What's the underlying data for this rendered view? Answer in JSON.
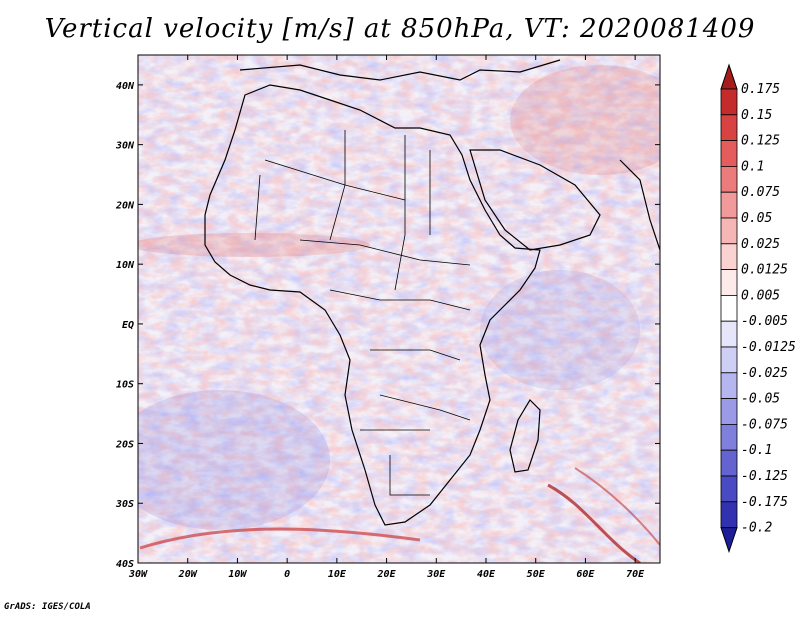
{
  "title": "Vertical velocity [m/s] at 850hPa, VT: 2020081409",
  "credit": "GrADS: IGES/COLA",
  "lon_labels": [
    "30W",
    "20W",
    "10W",
    "0",
    "10E",
    "20E",
    "30E",
    "40E",
    "50E",
    "60E",
    "70E"
  ],
  "lat_labels": [
    "40N",
    "30N",
    "20N",
    "10N",
    "EQ",
    "10S",
    "20S",
    "30S",
    "40S"
  ],
  "colorbar": {
    "labels": [
      "0.175",
      "0.15",
      "0.125",
      "0.1",
      "0.075",
      "0.05",
      "0.025",
      "0.0125",
      "0.005",
      "-0.005",
      "-0.0125",
      "-0.025",
      "-0.05",
      "-0.075",
      "-0.1",
      "-0.125",
      "-0.175",
      "-0.2"
    ],
    "colors": [
      "#a61c1c",
      "#c42b2b",
      "#d94242",
      "#e45c5c",
      "#ec7b7b",
      "#f29999",
      "#f6b6b6",
      "#fad2d2",
      "#fdeaea",
      "#ffffff",
      "#e6e6fb",
      "#cfcff6",
      "#b5b5ef",
      "#9a9ae6",
      "#7f7fdc",
      "#6464d0",
      "#4a4ac2",
      "#3232b0",
      "#1e1e9a"
    ]
  },
  "chart_data": {
    "type": "heatmap",
    "title": "Vertical velocity [m/s] at 850hPa, VT: 2020081409",
    "variable": "Vertical velocity",
    "units": "m/s",
    "level": "850hPa",
    "valid_time": "2020081409",
    "x": {
      "range": [
        -30,
        75
      ],
      "ticks": [
        "30W",
        "20W",
        "10W",
        "0",
        "10E",
        "20E",
        "30E",
        "40E",
        "50E",
        "60E",
        "70E"
      ]
    },
    "y": {
      "range": [
        -40,
        45
      ],
      "ticks": [
        "40N",
        "30N",
        "20N",
        "10N",
        "EQ",
        "10S",
        "20S",
        "30S",
        "40S"
      ]
    },
    "levels": [
      -0.2,
      -0.175,
      -0.125,
      -0.1,
      -0.075,
      -0.05,
      -0.025,
      -0.0125,
      -0.005,
      0.005,
      0.0125,
      0.025,
      0.05,
      0.075,
      0.1,
      0.125,
      0.15,
      0.175
    ],
    "legend_position": "right"
  }
}
